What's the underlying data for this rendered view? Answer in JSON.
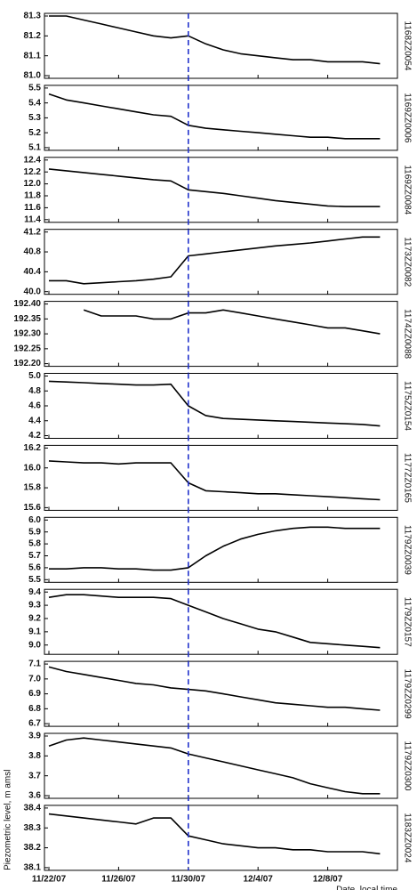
{
  "chart_data": [
    {
      "type": "line",
      "x": [
        "11/22/07",
        "11/23/07",
        "11/24/07",
        "11/25/07",
        "11/26/07",
        "11/27/07",
        "11/28/07",
        "11/29/07",
        "11/30/07",
        "12/1/07",
        "12/2/07",
        "12/3/07",
        "12/4/07",
        "12/5/07",
        "12/6/07",
        "12/7/07",
        "12/8/07",
        "12/9/07",
        "12/10/07",
        "12/11/07"
      ],
      "series": [
        {
          "name": "1168ZZ0054",
          "color": "#000000",
          "values": [
            81.3,
            81.3,
            81.28,
            81.26,
            81.24,
            81.22,
            81.2,
            81.19,
            81.2,
            81.16,
            81.13,
            81.11,
            81.1,
            81.09,
            81.08,
            81.08,
            81.07,
            81.07,
            81.07,
            81.06
          ]
        }
      ],
      "ylim": [
        81.0,
        81.3
      ],
      "yticks": [
        {
          "value": 81.0,
          "label": "81.0"
        },
        81.1,
        81.2,
        81.3
      ],
      "vline": "11/30/07",
      "vline_color": "#2233cc"
    },
    {
      "type": "line",
      "x": [
        "11/22/07",
        "11/23/07",
        "11/24/07",
        "11/25/07",
        "11/26/07",
        "11/27/07",
        "11/28/07",
        "11/29/07",
        "11/30/07",
        "12/1/07",
        "12/2/07",
        "12/3/07",
        "12/4/07",
        "12/5/07",
        "12/6/07",
        "12/7/07",
        "12/8/07",
        "12/9/07",
        "12/10/07",
        "12/11/07"
      ],
      "series": [
        {
          "name": "1169ZZ0006",
          "color": "#000000",
          "values": [
            5.46,
            5.42,
            5.4,
            5.38,
            5.36,
            5.34,
            5.32,
            5.31,
            5.25,
            5.23,
            5.22,
            5.21,
            5.2,
            5.19,
            5.18,
            5.17,
            5.17,
            5.16,
            5.16,
            5.16
          ]
        }
      ],
      "ylim": [
        5.1,
        5.5
      ],
      "yticks": [
        5.1,
        5.2,
        5.3,
        5.4,
        5.5
      ],
      "vline": "11/30/07",
      "vline_color": "#2233cc"
    },
    {
      "type": "line",
      "x": [
        "11/22/07",
        "11/23/07",
        "11/24/07",
        "11/25/07",
        "11/26/07",
        "11/27/07",
        "11/28/07",
        "11/29/07",
        "11/30/07",
        "12/1/07",
        "12/2/07",
        "12/3/07",
        "12/4/07",
        "12/5/07",
        "12/6/07",
        "12/7/07",
        "12/8/07",
        "12/9/07",
        "12/10/07",
        "12/11/07"
      ],
      "series": [
        {
          "name": "1169ZZ0084",
          "color": "#000000",
          "values": [
            12.25,
            12.22,
            12.19,
            12.16,
            12.13,
            12.1,
            12.07,
            12.05,
            11.9,
            11.87,
            11.84,
            11.8,
            11.76,
            11.72,
            11.69,
            11.66,
            11.63,
            11.62,
            11.62,
            11.62
          ]
        }
      ],
      "ylim": [
        11.4,
        12.4
      ],
      "yticks": [
        11.4,
        11.6,
        11.8,
        {
          "value": 12.0,
          "label": "12.0"
        },
        12.2,
        12.4
      ],
      "vline": "11/30/07",
      "vline_color": "#2233cc"
    },
    {
      "type": "line",
      "x": [
        "11/22/07",
        "11/23/07",
        "11/24/07",
        "11/25/07",
        "11/26/07",
        "11/27/07",
        "11/28/07",
        "11/29/07",
        "11/30/07",
        "12/1/07",
        "12/2/07",
        "12/3/07",
        "12/4/07",
        "12/5/07",
        "12/6/07",
        "12/7/07",
        "12/8/07",
        "12/9/07",
        "12/10/07",
        "12/11/07"
      ],
      "series": [
        {
          "name": "1173ZZ0082",
          "color": "#000000",
          "values": [
            40.22,
            40.22,
            40.16,
            40.18,
            40.2,
            40.22,
            40.25,
            40.3,
            40.72,
            40.76,
            40.8,
            40.84,
            40.88,
            40.92,
            40.95,
            40.98,
            41.02,
            41.06,
            41.1,
            41.1
          ]
        }
      ],
      "ylim": [
        40.0,
        41.2
      ],
      "yticks": [
        {
          "value": 40.0,
          "label": "40.0"
        },
        40.4,
        40.8,
        41.2
      ],
      "vline": "11/30/07",
      "vline_color": "#2233cc"
    },
    {
      "type": "line",
      "x": [
        "11/22/07",
        "11/23/07",
        "11/24/07",
        "11/25/07",
        "11/26/07",
        "11/27/07",
        "11/28/07",
        "11/29/07",
        "11/30/07",
        "12/1/07",
        "12/2/07",
        "12/3/07",
        "12/4/07",
        "12/5/07",
        "12/6/07",
        "12/7/07",
        "12/8/07",
        "12/9/07",
        "12/10/07",
        "12/11/07"
      ],
      "series": [
        {
          "name": "1174ZZ0088",
          "color": "#000000",
          "values": [
            null,
            null,
            192.38,
            192.36,
            192.36,
            192.36,
            192.35,
            192.35,
            192.37,
            192.37,
            192.38,
            192.37,
            192.36,
            192.35,
            192.34,
            192.33,
            192.32,
            192.32,
            192.31,
            192.3
          ]
        }
      ],
      "ylim": [
        192.2,
        192.4
      ],
      "yticks": [
        {
          "value": 192.2,
          "label": "192.20"
        },
        192.25,
        {
          "value": 192.3,
          "label": "192.30"
        },
        192.35,
        {
          "value": 192.4,
          "label": "192.40"
        }
      ],
      "vline": "11/30/07",
      "vline_color": "#2233cc"
    },
    {
      "type": "line",
      "x": [
        "11/22/07",
        "11/23/07",
        "11/24/07",
        "11/25/07",
        "11/26/07",
        "11/27/07",
        "11/28/07",
        "11/29/07",
        "11/30/07",
        "12/1/07",
        "12/2/07",
        "12/3/07",
        "12/4/07",
        "12/5/07",
        "12/6/07",
        "12/7/07",
        "12/8/07",
        "12/9/07",
        "12/10/07",
        "12/11/07"
      ],
      "series": [
        {
          "name": "1175ZZ0154",
          "color": "#000000",
          "values": [
            4.93,
            4.92,
            4.91,
            4.9,
            4.89,
            4.88,
            4.88,
            4.89,
            4.6,
            4.47,
            4.43,
            4.42,
            4.41,
            4.4,
            4.39,
            4.38,
            4.37,
            4.36,
            4.35,
            4.33
          ]
        }
      ],
      "ylim": [
        4.2,
        5.0
      ],
      "yticks": [
        4.2,
        4.4,
        4.6,
        4.8,
        {
          "value": 5.0,
          "label": "5.0"
        }
      ],
      "vline": "11/30/07",
      "vline_color": "#2233cc"
    },
    {
      "type": "line",
      "x": [
        "11/22/07",
        "11/23/07",
        "11/24/07",
        "11/25/07",
        "11/26/07",
        "11/27/07",
        "11/28/07",
        "11/29/07",
        "11/30/07",
        "12/1/07",
        "12/2/07",
        "12/3/07",
        "12/4/07",
        "12/5/07",
        "12/6/07",
        "12/7/07",
        "12/8/07",
        "12/9/07",
        "12/10/07",
        "12/11/07"
      ],
      "series": [
        {
          "name": "1177ZZ0165",
          "color": "#000000",
          "values": [
            16.07,
            16.06,
            16.05,
            16.05,
            16.04,
            16.05,
            16.05,
            16.05,
            15.85,
            15.77,
            15.76,
            15.75,
            15.74,
            15.74,
            15.73,
            15.72,
            15.71,
            15.7,
            15.69,
            15.68
          ]
        }
      ],
      "ylim": [
        15.6,
        16.2
      ],
      "yticks": [
        15.6,
        15.8,
        {
          "value": 16.0,
          "label": "16.0"
        },
        16.2
      ],
      "vline": "11/30/07",
      "vline_color": "#2233cc"
    },
    {
      "type": "line",
      "x": [
        "11/22/07",
        "11/23/07",
        "11/24/07",
        "11/25/07",
        "11/26/07",
        "11/27/07",
        "11/28/07",
        "11/29/07",
        "11/30/07",
        "12/1/07",
        "12/2/07",
        "12/3/07",
        "12/4/07",
        "12/5/07",
        "12/6/07",
        "12/7/07",
        "12/8/07",
        "12/9/07",
        "12/10/07",
        "12/11/07"
      ],
      "series": [
        {
          "name": "1179ZZ0039",
          "color": "#000000",
          "values": [
            5.59,
            5.59,
            5.6,
            5.6,
            5.59,
            5.59,
            5.58,
            5.58,
            5.6,
            5.7,
            5.78,
            5.84,
            5.88,
            5.91,
            5.93,
            5.94,
            5.94,
            5.93,
            5.93,
            5.93
          ]
        }
      ],
      "ylim": [
        5.5,
        6.0
      ],
      "yticks": [
        5.5,
        5.6,
        5.7,
        5.8,
        5.9,
        {
          "value": 6.0,
          "label": "6.0"
        }
      ],
      "vline": "11/30/07",
      "vline_color": "#2233cc"
    },
    {
      "type": "line",
      "x": [
        "11/22/07",
        "11/23/07",
        "11/24/07",
        "11/25/07",
        "11/26/07",
        "11/27/07",
        "11/28/07",
        "11/29/07",
        "11/30/07",
        "12/1/07",
        "12/2/07",
        "12/3/07",
        "12/4/07",
        "12/5/07",
        "12/6/07",
        "12/7/07",
        "12/8/07",
        "12/9/07",
        "12/10/07",
        "12/11/07"
      ],
      "series": [
        {
          "name": "1179ZZ0157",
          "color": "#000000",
          "values": [
            9.36,
            9.38,
            9.38,
            9.37,
            9.36,
            9.36,
            9.36,
            9.35,
            9.3,
            9.25,
            9.2,
            9.16,
            9.12,
            9.1,
            9.06,
            9.02,
            9.01,
            9.0,
            8.99,
            8.98
          ]
        }
      ],
      "ylim": [
        8.95,
        9.4
      ],
      "yticks": [
        {
          "value": 9.0,
          "label": "9.0"
        },
        9.1,
        9.2,
        9.3,
        9.4
      ],
      "vline": "11/30/07",
      "vline_color": "#2233cc"
    },
    {
      "type": "line",
      "x": [
        "11/22/07",
        "11/23/07",
        "11/24/07",
        "11/25/07",
        "11/26/07",
        "11/27/07",
        "11/28/07",
        "11/29/07",
        "11/30/07",
        "12/1/07",
        "12/2/07",
        "12/3/07",
        "12/4/07",
        "12/5/07",
        "12/6/07",
        "12/7/07",
        "12/8/07",
        "12/9/07",
        "12/10/07",
        "12/11/07"
      ],
      "series": [
        {
          "name": "1179ZZ0299",
          "color": "#000000",
          "values": [
            7.08,
            7.05,
            7.03,
            7.01,
            6.99,
            6.97,
            6.96,
            6.94,
            6.93,
            6.92,
            6.9,
            6.88,
            6.86,
            6.84,
            6.83,
            6.82,
            6.81,
            6.81,
            6.8,
            6.79
          ]
        }
      ],
      "ylim": [
        6.7,
        7.1
      ],
      "yticks": [
        6.7,
        6.8,
        6.9,
        {
          "value": 7.0,
          "label": "7.0"
        },
        7.1
      ],
      "vline": "11/30/07",
      "vline_color": "#2233cc"
    },
    {
      "type": "line",
      "x": [
        "11/22/07",
        "11/23/07",
        "11/24/07",
        "11/25/07",
        "11/26/07",
        "11/27/07",
        "11/28/07",
        "11/29/07",
        "11/30/07",
        "12/1/07",
        "12/2/07",
        "12/3/07",
        "12/4/07",
        "12/5/07",
        "12/6/07",
        "12/7/07",
        "12/8/07",
        "12/9/07",
        "12/10/07",
        "12/11/07"
      ],
      "series": [
        {
          "name": "1179ZZ0300",
          "color": "#000000",
          "values": [
            3.85,
            3.88,
            3.89,
            3.88,
            3.87,
            3.86,
            3.85,
            3.84,
            3.81,
            3.79,
            3.77,
            3.75,
            3.73,
            3.71,
            3.69,
            3.66,
            3.64,
            3.62,
            3.61,
            3.61
          ]
        }
      ],
      "ylim": [
        3.6,
        3.9
      ],
      "yticks": [
        3.6,
        3.7,
        3.8,
        3.9
      ],
      "vline": "11/30/07",
      "vline_color": "#2233cc"
    },
    {
      "type": "line",
      "x": [
        "11/22/07",
        "11/23/07",
        "11/24/07",
        "11/25/07",
        "11/26/07",
        "11/27/07",
        "11/28/07",
        "11/29/07",
        "11/30/07",
        "12/1/07",
        "12/2/07",
        "12/3/07",
        "12/4/07",
        "12/5/07",
        "12/6/07",
        "12/7/07",
        "12/8/07",
        "12/9/07",
        "12/10/07",
        "12/11/07"
      ],
      "series": [
        {
          "name": "1183ZZ0024",
          "color": "#000000",
          "values": [
            38.37,
            38.36,
            38.35,
            38.34,
            38.33,
            38.32,
            38.35,
            38.35,
            38.26,
            38.24,
            38.22,
            38.21,
            38.2,
            38.2,
            38.19,
            38.19,
            38.18,
            38.18,
            38.18,
            38.17
          ]
        }
      ],
      "ylim": [
        38.1,
        38.4
      ],
      "yticks": [
        38.1,
        38.2,
        38.3,
        38.4
      ],
      "vline": "11/30/07",
      "vline_color": "#2233cc",
      "xlim": [
        "11/22/07",
        "12/12/07"
      ],
      "xticks": [
        "11/22/07",
        "11/26/07",
        "11/30/07",
        "12/4/07",
        "12/8/07"
      ],
      "ylabel": "Piezometric level, m amsl",
      "xlabel": "Date, local time"
    }
  ]
}
